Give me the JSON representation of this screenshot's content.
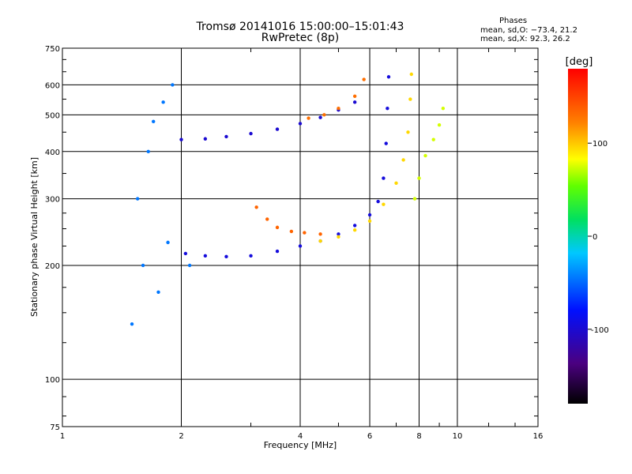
{
  "chart_data": {
    "type": "scatter",
    "title": "Tromsø 20141016 15:00:00–15:01:43",
    "subtitle": "RwPretec (8p)",
    "xlabel": "Frequency [MHz]",
    "ylabel": "Stationary phase Virtual Height [km]",
    "x_scale": "log",
    "y_scale": "log",
    "xlim": [
      1,
      16
    ],
    "ylim": [
      75,
      750
    ],
    "x_ticks": [
      1,
      2,
      4,
      6,
      8,
      10,
      16
    ],
    "y_ticks": [
      75,
      100,
      200,
      300,
      400,
      500,
      600,
      750
    ],
    "grid": true,
    "colorbar": {
      "label": "[deg]",
      "range": [
        -180,
        180
      ],
      "ticks": [
        100,
        0,
        -100
      ]
    },
    "stats": {
      "heading": "Phases",
      "o_line": "mean, sd,O: −73.4, 21.2",
      "x_line": "mean, sd,X:  92.3, 26.2"
    },
    "series": [
      {
        "points": [
          [
            2.05,
            215
          ],
          [
            2.3,
            212
          ],
          [
            2.6,
            211
          ],
          [
            3.0,
            212
          ],
          [
            3.5,
            218
          ],
          [
            4.0,
            225
          ],
          [
            4.5,
            232
          ],
          [
            5.0,
            242
          ],
          [
            5.5,
            255
          ],
          [
            6.0,
            272
          ],
          [
            6.3,
            295
          ],
          [
            6.5,
            340
          ],
          [
            6.6,
            420
          ],
          [
            6.65,
            520
          ],
          [
            6.7,
            630
          ]
        ],
        "phase": -95
      },
      {
        "points": [
          [
            2.0,
            430
          ],
          [
            2.3,
            432
          ],
          [
            2.6,
            438
          ],
          [
            3.0,
            446
          ],
          [
            3.5,
            458
          ],
          [
            4.0,
            474
          ],
          [
            4.5,
            492
          ],
          [
            5.0,
            515
          ],
          [
            5.5,
            540
          ]
        ],
        "phase": -100
      },
      {
        "points": [
          [
            4.5,
            232
          ],
          [
            5.0,
            238
          ],
          [
            5.5,
            248
          ],
          [
            6.0,
            262
          ],
          [
            6.5,
            290
          ],
          [
            7.0,
            330
          ],
          [
            7.3,
            380
          ],
          [
            7.5,
            450
          ],
          [
            7.6,
            550
          ],
          [
            7.65,
            640
          ]
        ],
        "phase": 95
      },
      {
        "points": [
          [
            4.2,
            490
          ],
          [
            4.6,
            500
          ],
          [
            5.0,
            520
          ],
          [
            5.5,
            560
          ],
          [
            5.8,
            620
          ]
        ],
        "phase": 130
      },
      {
        "points": [
          [
            3.1,
            285
          ],
          [
            3.3,
            265
          ],
          [
            3.5,
            252
          ],
          [
            3.8,
            246
          ],
          [
            4.1,
            244
          ],
          [
            4.5,
            242
          ]
        ],
        "phase": 135
      },
      {
        "points": [
          [
            7.8,
            300
          ],
          [
            8.0,
            340
          ],
          [
            8.3,
            390
          ],
          [
            8.7,
            430
          ],
          [
            9.0,
            470
          ],
          [
            9.2,
            520
          ]
        ],
        "phase": 75
      },
      {
        "points": [
          [
            1.5,
            140
          ],
          [
            1.6,
            200
          ],
          [
            1.55,
            300
          ],
          [
            1.65,
            400
          ],
          [
            1.7,
            480
          ],
          [
            1.8,
            540
          ],
          [
            1.9,
            600
          ],
          [
            1.75,
            170
          ],
          [
            1.85,
            230
          ],
          [
            2.1,
            200
          ]
        ],
        "phase": -45
      }
    ]
  }
}
